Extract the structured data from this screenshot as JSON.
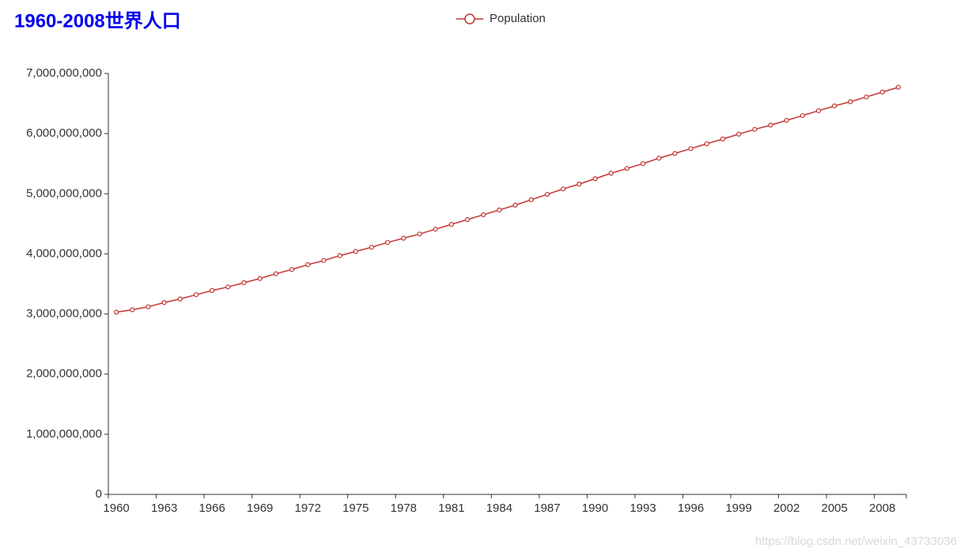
{
  "chart_data": {
    "type": "line",
    "title": "1960-2008世界人口",
    "categories": [
      "1960",
      null,
      null,
      "1963",
      null,
      null,
      "1966",
      null,
      null,
      "1969",
      null,
      null,
      "1972",
      null,
      null,
      "1975",
      null,
      null,
      "1978",
      null,
      null,
      "1981",
      null,
      null,
      "1984",
      null,
      null,
      "1987",
      null,
      null,
      "1990",
      null,
      null,
      "1993",
      null,
      null,
      "1996",
      null,
      null,
      "1999",
      null,
      null,
      "2002",
      null,
      null,
      "2005",
      null,
      null,
      "2008",
      null
    ],
    "series": [
      {
        "name": "Population",
        "color": "#c23531",
        "values": [
          3030000000,
          3070000000,
          3120000000,
          3190000000,
          3250000000,
          3320000000,
          3390000000,
          3450000000,
          3520000000,
          3590000000,
          3670000000,
          3740000000,
          3820000000,
          3890000000,
          3970000000,
          4040000000,
          4110000000,
          4190000000,
          4260000000,
          4330000000,
          4410000000,
          4490000000,
          4570000000,
          4650000000,
          4730000000,
          4810000000,
          4900000000,
          4990000000,
          5080000000,
          5160000000,
          5250000000,
          5340000000,
          5420000000,
          5500000000,
          5590000000,
          5670000000,
          5750000000,
          5830000000,
          5910000000,
          5990000000,
          6070000000,
          6140000000,
          6220000000,
          6300000000,
          6380000000,
          6460000000,
          6530000000,
          6610000000,
          6690000000,
          6770000000
        ]
      }
    ],
    "ylim": [
      0,
      7000000000
    ],
    "yticks": [
      0,
      {
        "value": 1000000000,
        "label": "1,000,000,000"
      },
      {
        "value": 2000000000,
        "label": "2,000,000,000"
      },
      {
        "value": 3000000000,
        "label": "3,000,000,000"
      },
      {
        "value": 4000000000,
        "label": "4,000,000,000"
      },
      {
        "value": 5000000000,
        "label": "5,000,000,000"
      },
      {
        "value": 6000000000,
        "label": "6,000,000,000"
      },
      {
        "value": 7000000000,
        "label": "7,000,000,000"
      }
    ],
    "grid": false,
    "legend": "top",
    "watermark": "https://blog.csdn.net/weixin_43733036"
  }
}
